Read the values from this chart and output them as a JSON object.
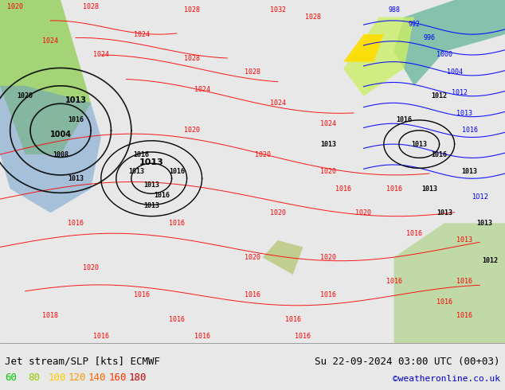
{
  "title_left": "Jet stream/SLP [kts] ECMWF",
  "title_right": "Su 22-09-2024 03:00 UTC (00+03)",
  "credit": "©weatheronline.co.uk",
  "legend_values": [
    60,
    80,
    100,
    120,
    140,
    160,
    180
  ],
  "legend_colors": [
    "#00cc00",
    "#99cc00",
    "#ffcc00",
    "#ff9900",
    "#ff6600",
    "#ff3300",
    "#cc0000"
  ],
  "bg_color": "#e8e8e8",
  "map_bg": "#d4ecd4",
  "figsize": [
    6.34,
    4.9
  ],
  "dpi": 100,
  "bottom_bar_height": 0.12,
  "title_fontsize": 9,
  "legend_fontsize": 9,
  "credit_fontsize": 8,
  "title_color": "#000000",
  "credit_color": "#0000cc"
}
